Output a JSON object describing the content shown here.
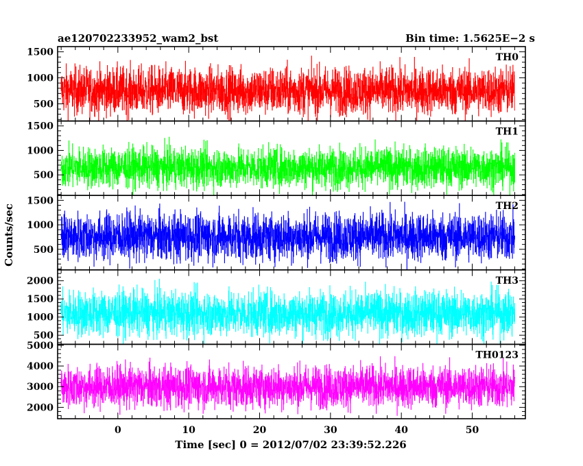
{
  "title_left": "ae120702233952_wam2_bst",
  "title_right": "Bin time: 1.5625E−2 s",
  "xlabel": "Time [sec] 0 = 2012/07/02 23:39:52.226",
  "ylabel": "Counts/sec",
  "chart_data": {
    "type": "line",
    "x_range": [
      -8.5,
      57.5
    ],
    "x_ticks": [
      0,
      10,
      20,
      30,
      40,
      50
    ],
    "x_tick_labels": [
      "0",
      "10",
      "20",
      "30",
      "40",
      "50"
    ],
    "data_x_range": [
      -8.0,
      56.0
    ],
    "bin_time_s": 0.015625,
    "panels": [
      {
        "name": "TH0",
        "color": "#ff0000",
        "ylim": [
          170,
          1600
        ],
        "y_ticks": [
          500,
          1000,
          1500
        ],
        "y_tick_labels": [
          "500",
          "1000",
          "1500"
        ],
        "mean": 750,
        "spread": 230,
        "min": 100,
        "max": 1600
      },
      {
        "name": "TH1",
        "color": "#00ff00",
        "ylim": [
          80,
          1600
        ],
        "y_ticks": [
          500,
          1000,
          1500
        ],
        "y_tick_labels": [
          "500",
          "1000",
          "1500"
        ],
        "mean": 650,
        "spread": 210,
        "min": 50,
        "max": 1550
      },
      {
        "name": "TH2",
        "color": "#0000ff",
        "ylim": [
          80,
          1600
        ],
        "y_ticks": [
          500,
          1000,
          1500
        ],
        "y_tick_labels": [
          "500",
          "1000",
          "1500"
        ],
        "mean": 760,
        "spread": 250,
        "min": 50,
        "max": 1600
      },
      {
        "name": "TH3",
        "color": "#00ffff",
        "ylim": [
          250,
          2300
        ],
        "y_ticks": [
          500,
          1000,
          1500,
          2000
        ],
        "y_tick_labels": [
          "500",
          "1000",
          "1500",
          "2000"
        ],
        "mean": 1100,
        "spread": 320,
        "min": 250,
        "max": 2300
      },
      {
        "name": "TH0123",
        "color": "#ff00ff",
        "ylim": [
          1450,
          5050
        ],
        "y_ticks": [
          2000,
          3000,
          4000,
          5000
        ],
        "y_tick_labels": [
          "2000",
          "3000",
          "4000",
          "5000"
        ],
        "mean": 3000,
        "spread": 520,
        "min": 1450,
        "max": 5050
      }
    ]
  }
}
